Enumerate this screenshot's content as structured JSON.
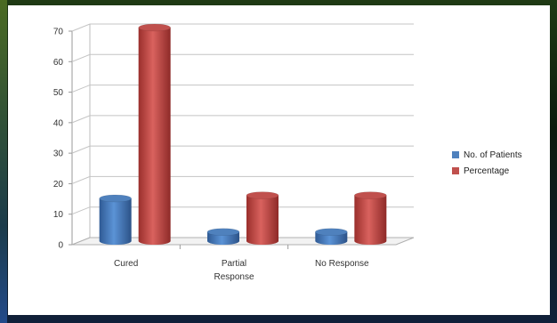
{
  "chart_data": {
    "type": "bar",
    "categories": [
      "Cured",
      "Partial Response",
      "No Response"
    ],
    "category_lines": [
      [
        "Cured"
      ],
      [
        "Partial",
        "Response"
      ],
      [
        "No Response"
      ]
    ],
    "series": [
      {
        "name": "No. of Patients",
        "values": [
          14,
          3,
          3
        ],
        "color": "#4f81bd"
      },
      {
        "name": "Percentage",
        "values": [
          70,
          15,
          15
        ],
        "color": "#c0504d"
      }
    ],
    "ylim": [
      0,
      70
    ],
    "yticks": [
      0,
      10,
      20,
      30,
      40,
      50,
      60,
      70
    ],
    "grid": true,
    "legend_position": "right",
    "style": "3d-cylinder"
  }
}
